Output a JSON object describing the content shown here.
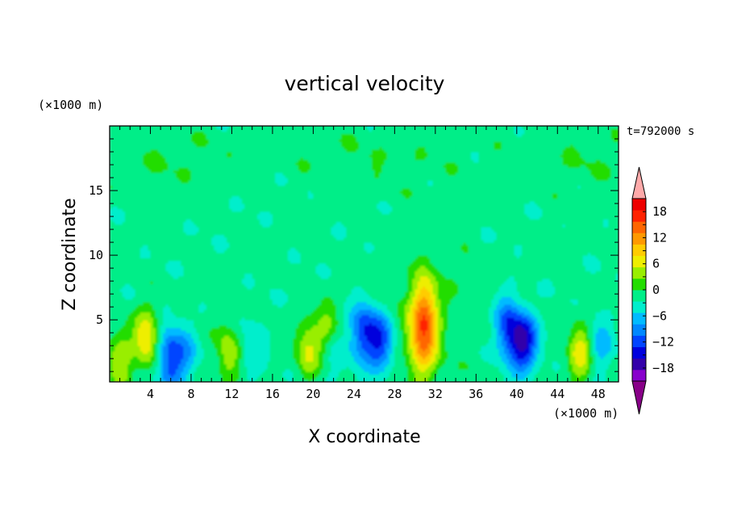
{
  "chart_data": {
    "type": "heatmap",
    "title": "vertical velocity",
    "xlabel": "X coordinate",
    "ylabel": "Z coordinate",
    "x_unit": "(×1000 m)",
    "y_unit": "(×1000 m)",
    "time_label": "t=792000 s",
    "xlim": [
      0,
      50
    ],
    "ylim": [
      0.2,
      20
    ],
    "x_ticks": [
      "4",
      "8",
      "12",
      "16",
      "20",
      "24",
      "28",
      "32",
      "36",
      "40",
      "44",
      "48"
    ],
    "y_ticks": [
      "5",
      "10",
      "15"
    ],
    "colorbar": {
      "min": -21,
      "max": 21,
      "step": 3,
      "tick_labels": [
        "18",
        "12",
        "6",
        "0",
        "−6",
        "−12",
        "−18"
      ],
      "colors": [
        "#8800cc",
        "#3300aa",
        "#0000dd",
        "#0044ff",
        "#0088ff",
        "#00bbff",
        "#00eecc",
        "#00ee88",
        "#22dd00",
        "#99ee00",
        "#eeee00",
        "#ffcc00",
        "#ff9900",
        "#ff6600",
        "#ff2200",
        "#ee0000"
      ],
      "over_color": "#ffaaaa",
      "under_color": "#880088"
    },
    "features": [
      {
        "x": 1.0,
        "z": 2.0,
        "value": 8
      },
      {
        "x": 3.6,
        "z": 3.6,
        "value": 11
      },
      {
        "x": 5.9,
        "z": 2.0,
        "value": -12
      },
      {
        "x": 7.4,
        "z": 2.3,
        "value": -6
      },
      {
        "x": 11.7,
        "z": 2.4,
        "value": 7
      },
      {
        "x": 14.0,
        "z": 2.7,
        "value": -4
      },
      {
        "x": 19.5,
        "z": 2.8,
        "value": 8
      },
      {
        "x": 21.3,
        "z": 4.3,
        "value": 5
      },
      {
        "x": 22.0,
        "z": 2.0,
        "value": -3
      },
      {
        "x": 25.0,
        "z": 4.0,
        "value": -13
      },
      {
        "x": 26.7,
        "z": 3.2,
        "value": -11
      },
      {
        "x": 30.8,
        "z": 3.7,
        "value": 17
      },
      {
        "x": 31.0,
        "z": 6.5,
        "value": 8
      },
      {
        "x": 39.0,
        "z": 4.5,
        "value": -10
      },
      {
        "x": 40.6,
        "z": 3.3,
        "value": -17
      },
      {
        "x": 46.3,
        "z": 2.3,
        "value": 10
      },
      {
        "x": 48.2,
        "z": 3.0,
        "value": -6
      }
    ]
  }
}
